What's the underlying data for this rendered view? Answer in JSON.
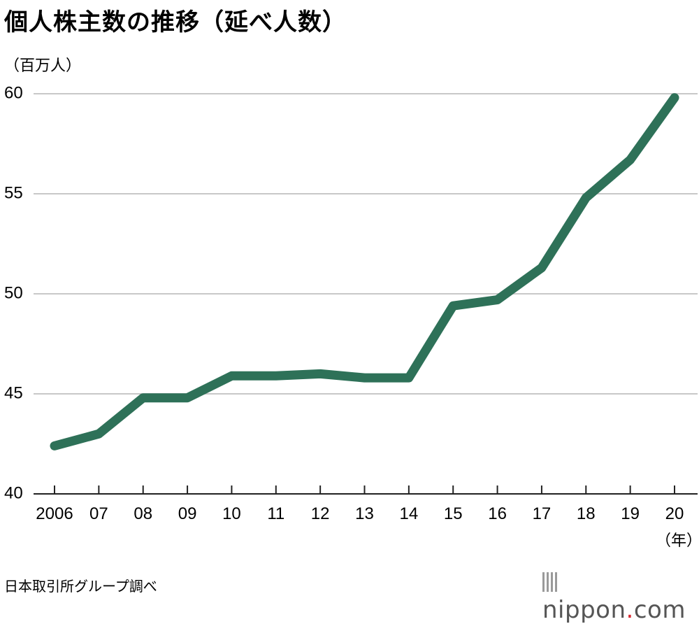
{
  "title": "個人株主数の推移（延べ人数）",
  "y_unit": "（百万人）",
  "x_unit": "（年）",
  "source": "日本取引所グループ調べ",
  "brand": {
    "name": "nippon",
    "dot": ".",
    "tld": "com"
  },
  "colors": {
    "line": "#2e7158",
    "grid": "#c8c8c8",
    "axis": "#222222"
  },
  "chart_data": {
    "type": "line",
    "categories": [
      "2006",
      "07",
      "08",
      "09",
      "10",
      "11",
      "12",
      "13",
      "14",
      "15",
      "16",
      "17",
      "18",
      "19",
      "20"
    ],
    "series": [
      {
        "values": [
          42.4,
          43.0,
          44.8,
          44.8,
          45.9,
          45.9,
          46.0,
          45.8,
          45.8,
          49.4,
          49.7,
          51.3,
          54.8,
          56.7,
          59.8
        ]
      }
    ],
    "yticks": [
      "60",
      "55",
      "50",
      "45",
      "40"
    ],
    "ylim": [
      40,
      60
    ],
    "grid": true
  }
}
